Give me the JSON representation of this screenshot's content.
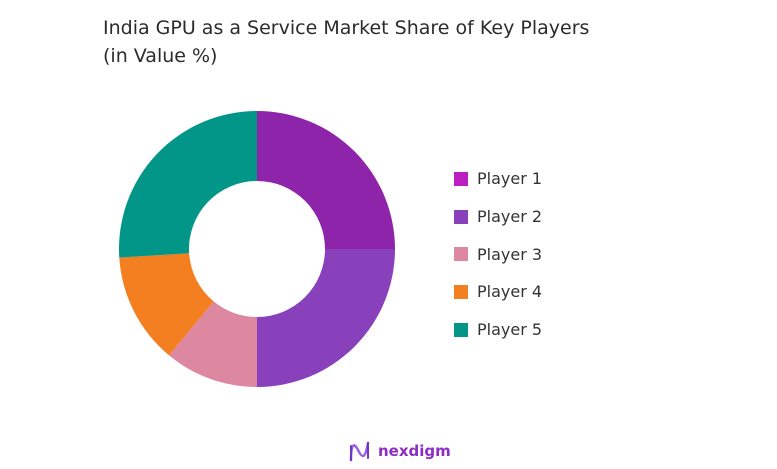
{
  "chart_data": {
    "type": "pie",
    "donut": true,
    "title": "India GPU as a Service Market Share of Key Players",
    "subtitle": "(in Value %)",
    "categories": [
      "Player 1",
      "Player 2",
      "Player 3",
      "Player 4",
      "Player 5"
    ],
    "values": [
      25,
      25,
      11,
      13,
      26
    ],
    "colors": [
      "#8E24AA",
      "#8940BB",
      "#DE87A0",
      "#F37F21",
      "#029688"
    ],
    "legend_colors": [
      "#BB1FC0",
      "#8940BB",
      "#DE87A0",
      "#F37F21",
      "#029688"
    ],
    "legend_position": "right"
  },
  "brand": {
    "name": "nexdigm"
  }
}
